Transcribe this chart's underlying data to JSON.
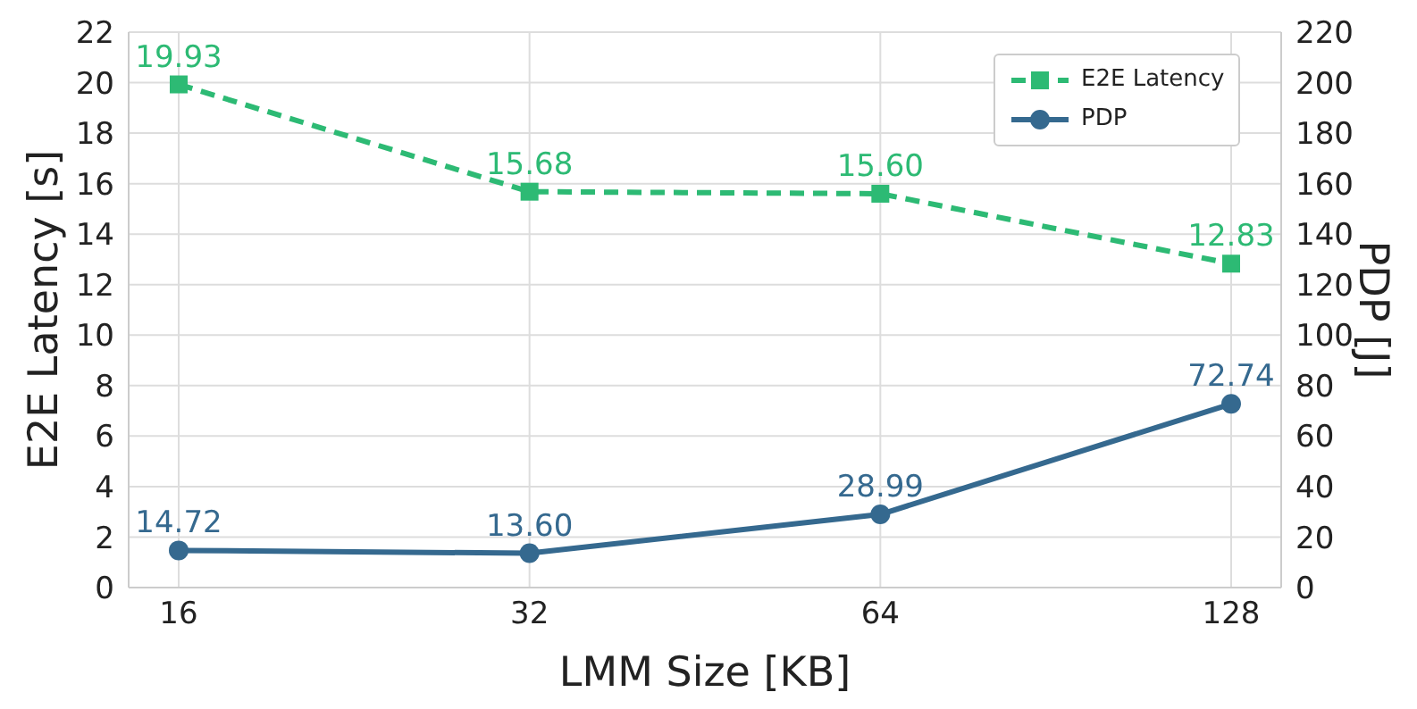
{
  "chart_data": {
    "type": "line",
    "xlabel": "LMM Size [KB]",
    "ylabel": "E2E Latency [s]",
    "y2label": "PDP [J]",
    "categories": [
      "16",
      "32",
      "64",
      "128"
    ],
    "series": [
      {
        "name": "E2E Latency",
        "color": "#2dba74",
        "values": [
          19.93,
          15.68,
          15.6,
          12.83
        ],
        "value_labels": [
          "19.93",
          "15.68",
          "15.60",
          "12.83"
        ],
        "marker": "square",
        "line_style": "dashed"
      },
      {
        "name": "PDP",
        "color": "#35698f",
        "values": [
          14.72,
          13.6,
          28.99,
          72.74
        ],
        "value_labels": [
          "14.72",
          "13.60",
          "28.99",
          "72.74"
        ],
        "marker": "circle",
        "line_style": "solid",
        "axis": "y2"
      }
    ],
    "ylim": [
      0,
      22
    ],
    "yticks": [
      0,
      2,
      4,
      6,
      8,
      10,
      12,
      14,
      16,
      18,
      20,
      22
    ],
    "y2lim": [
      0,
      220
    ],
    "y2ticks": [
      0,
      20,
      40,
      60,
      80,
      100,
      120,
      140,
      160,
      180,
      200,
      220
    ],
    "grid": true,
    "legend": "top right"
  }
}
